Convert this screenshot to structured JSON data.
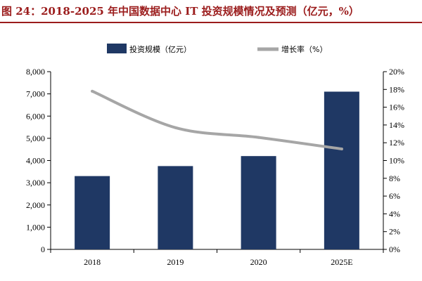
{
  "title": "图 24：2018-2025 年中国数据中心 IT 投资规模情况及预测（亿元，%）",
  "colors": {
    "bar": "#1f3864",
    "line": "#a6a6a6",
    "title": "#9b1c1c"
  },
  "chart_data": {
    "type": "bar",
    "categories": [
      "2018",
      "2019",
      "2020",
      "2025E"
    ],
    "series": [
      {
        "name": "投资规模（亿元）",
        "type": "bar",
        "axis": "left",
        "values": [
          3300,
          3750,
          4200,
          7100
        ]
      },
      {
        "name": "增长率（%）",
        "type": "line",
        "axis": "right",
        "values": [
          17.8,
          13.7,
          12.6,
          11.3
        ]
      }
    ],
    "left_axis": {
      "min": 0,
      "max": 8000,
      "ticks": [
        "0",
        "1,000",
        "2,000",
        "3,000",
        "4,000",
        "5,000",
        "6,000",
        "7,000",
        "8,000"
      ]
    },
    "right_axis": {
      "min": 0,
      "max": 20,
      "ticks": [
        "0%",
        "2%",
        "4%",
        "6%",
        "8%",
        "10%",
        "12%",
        "14%",
        "16%",
        "18%",
        "20%"
      ]
    },
    "legend": "top",
    "grid": false
  }
}
